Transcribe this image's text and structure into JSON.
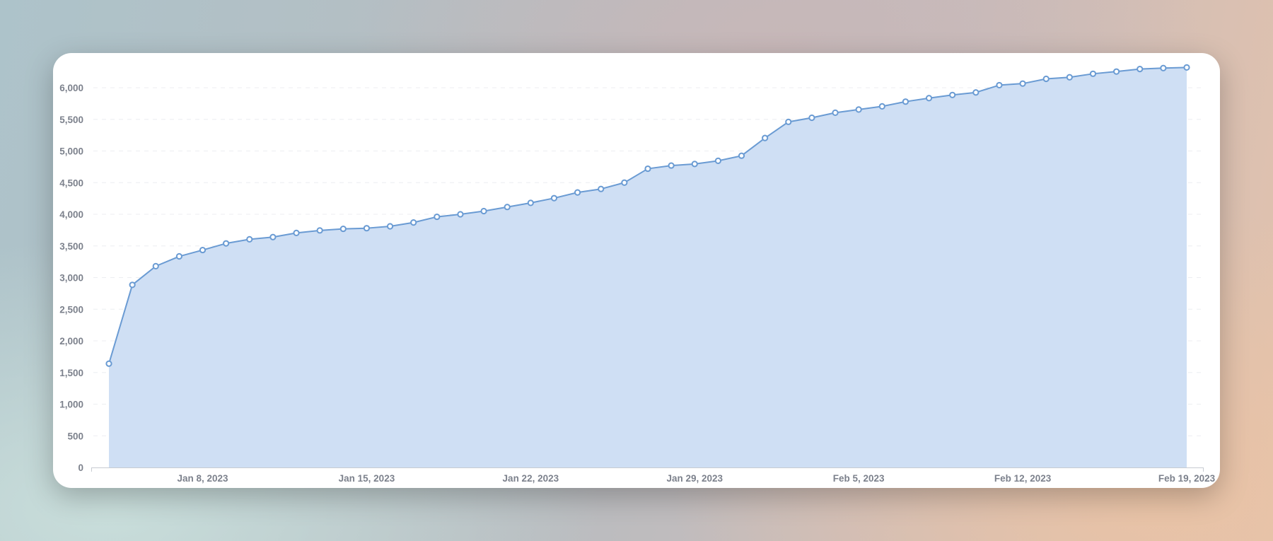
{
  "chart_data": {
    "type": "area",
    "title": "",
    "xlabel": "",
    "ylabel": "",
    "x_start": "2023-01-04",
    "x": [
      "Jan 4, 2023",
      "Jan 5, 2023",
      "Jan 6, 2023",
      "Jan 7, 2023",
      "Jan 8, 2023",
      "Jan 9, 2023",
      "Jan 10, 2023",
      "Jan 11, 2023",
      "Jan 12, 2023",
      "Jan 13, 2023",
      "Jan 14, 2023",
      "Jan 15, 2023",
      "Jan 16, 2023",
      "Jan 17, 2023",
      "Jan 18, 2023",
      "Jan 19, 2023",
      "Jan 20, 2023",
      "Jan 21, 2023",
      "Jan 22, 2023",
      "Jan 23, 2023",
      "Jan 24, 2023",
      "Jan 25, 2023",
      "Jan 26, 2023",
      "Jan 27, 2023",
      "Jan 28, 2023",
      "Jan 29, 2023",
      "Jan 30, 2023",
      "Jan 31, 2023",
      "Feb 1, 2023",
      "Feb 2, 2023",
      "Feb 3, 2023",
      "Feb 4, 2023",
      "Feb 5, 2023",
      "Feb 6, 2023",
      "Feb 7, 2023",
      "Feb 8, 2023",
      "Feb 9, 2023",
      "Feb 10, 2023",
      "Feb 11, 2023",
      "Feb 12, 2023",
      "Feb 13, 2023",
      "Feb 14, 2023",
      "Feb 15, 2023",
      "Feb 16, 2023",
      "Feb 17, 2023",
      "Feb 18, 2023",
      "Feb 19, 2023"
    ],
    "values": [
      1640,
      2885,
      3180,
      3335,
      3435,
      3540,
      3605,
      3640,
      3705,
      3745,
      3770,
      3780,
      3810,
      3870,
      3960,
      4000,
      4050,
      4115,
      4180,
      4255,
      4345,
      4400,
      4500,
      4720,
      4770,
      4795,
      4845,
      4925,
      5205,
      5460,
      5525,
      5605,
      5655,
      5705,
      5780,
      5835,
      5885,
      5925,
      6040,
      6065,
      6140,
      6165,
      6220,
      6255,
      6295,
      6310,
      6320
    ],
    "ylim": [
      0,
      6400
    ],
    "yticks": [
      0,
      500,
      1000,
      1500,
      2000,
      2500,
      3000,
      3500,
      4000,
      4500,
      5000,
      5500,
      6000
    ],
    "ytick_labels": [
      "0",
      "500",
      "1,000",
      "1,500",
      "2,000",
      "2,500",
      "3,000",
      "3,500",
      "4,000",
      "4,500",
      "5,000",
      "5,500",
      "6,000"
    ],
    "xtick_labels": [
      "Jan 8, 2023",
      "Jan 15, 2023",
      "Jan 22, 2023",
      "Jan 29, 2023",
      "Feb 5, 2023",
      "Feb 12, 2023",
      "Feb 19, 2023"
    ],
    "xtick_indices": [
      4,
      11,
      18,
      25,
      32,
      39,
      46
    ],
    "grid": true,
    "legend": "none",
    "colors": {
      "line": "#6a9bd3",
      "fill": "#cfdff4",
      "grid": "#eceef1",
      "axis": "#c7cbd1"
    }
  }
}
